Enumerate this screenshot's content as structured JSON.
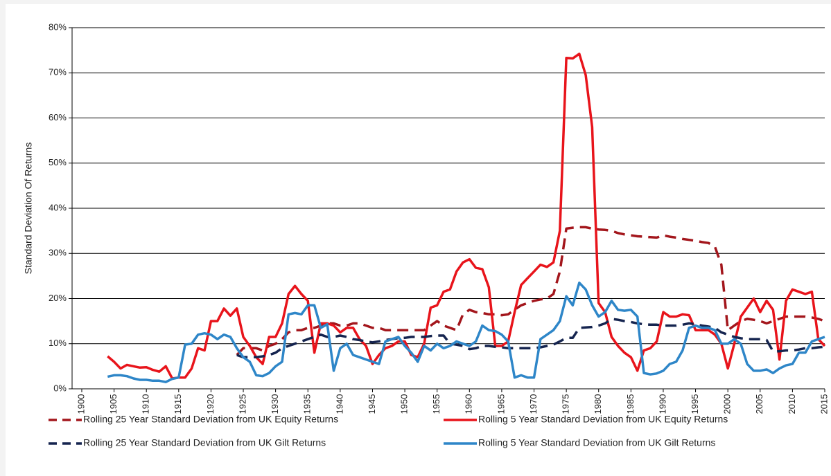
{
  "chart_data": {
    "type": "line",
    "y_label": "Standard Deviation Of Returns",
    "x": [
      1904,
      1905,
      1906,
      1907,
      1908,
      1909,
      1910,
      1911,
      1912,
      1913,
      1914,
      1915,
      1916,
      1917,
      1918,
      1919,
      1920,
      1921,
      1922,
      1923,
      1924,
      1925,
      1926,
      1927,
      1928,
      1929,
      1930,
      1931,
      1932,
      1933,
      1934,
      1935,
      1936,
      1937,
      1938,
      1939,
      1940,
      1941,
      1942,
      1943,
      1944,
      1945,
      1946,
      1947,
      1948,
      1949,
      1950,
      1951,
      1952,
      1953,
      1954,
      1955,
      1956,
      1957,
      1958,
      1959,
      1960,
      1961,
      1962,
      1963,
      1964,
      1965,
      1966,
      1967,
      1968,
      1969,
      1970,
      1971,
      1972,
      1973,
      1974,
      1975,
      1976,
      1977,
      1978,
      1979,
      1980,
      1981,
      1982,
      1983,
      1984,
      1985,
      1986,
      1987,
      1988,
      1989,
      1990,
      1991,
      1992,
      1993,
      1994,
      1995,
      1996,
      1997,
      1998,
      1999,
      2000,
      2001,
      2002,
      2003,
      2004,
      2005,
      2006,
      2007,
      2008,
      2009,
      2010,
      2011,
      2012,
      2013,
      2014,
      2015
    ],
    "series": [
      {
        "name": "Rolling 25 Year Standard Deviation from UK Equity Returns",
        "color": "#a3161c",
        "dashed": true,
        "values": [
          null,
          null,
          null,
          null,
          null,
          null,
          null,
          null,
          null,
          null,
          null,
          null,
          null,
          null,
          null,
          null,
          null,
          null,
          null,
          null,
          7.5,
          9,
          9,
          9,
          8.5,
          9.5,
          10,
          11,
          12.5,
          13,
          13,
          13.5,
          13.5,
          14,
          14.5,
          14.5,
          14,
          14,
          14.5,
          14.5,
          14,
          13.5,
          13.5,
          13,
          13,
          13,
          13,
          13,
          13,
          13,
          14,
          15,
          14,
          13.5,
          13,
          16.5,
          17.5,
          17,
          16.8,
          16.5,
          16.5,
          16.3,
          16.5,
          17.5,
          18.5,
          19,
          19.5,
          19.8,
          20,
          21,
          26,
          35.5,
          35.7,
          35.8,
          35.8,
          35.5,
          35.3,
          35.2,
          35,
          34.5,
          34.2,
          34,
          33.8,
          33.7,
          33.6,
          33.5,
          34,
          33.7,
          33.5,
          33.2,
          33,
          32.8,
          32.5,
          32.3,
          31.5,
          27.5,
          13,
          14,
          15,
          15.5,
          15.3,
          15,
          14.5,
          15,
          15.5,
          16,
          16,
          16,
          16,
          15.8,
          15.5,
          15
        ]
      },
      {
        "name": "Rolling 5 Year Standard Deviation from UK Equity Returns",
        "color": "#e8141b",
        "dashed": false,
        "values": [
          7.2,
          6,
          4.5,
          5.3,
          5,
          4.7,
          4.8,
          4.2,
          3.8,
          5,
          2.3,
          2.5,
          2.5,
          4.5,
          9,
          8.5,
          15,
          15,
          17.8,
          16.2,
          17.8,
          11.5,
          9.5,
          7,
          5.5,
          11.5,
          11.5,
          14.5,
          21,
          22.8,
          21,
          19.5,
          8,
          14.5,
          14.5,
          14,
          12.5,
          13.5,
          13.5,
          11,
          9.5,
          5.5,
          7.5,
          9,
          9.5,
          10.5,
          10.5,
          7.5,
          7,
          10,
          18,
          18.5,
          21.5,
          22,
          26,
          28,
          28.7,
          26.8,
          26.5,
          22.5,
          9.5,
          9.5,
          10.5,
          17,
          23,
          24.5,
          26,
          27.5,
          27,
          28,
          35,
          73.3,
          73.2,
          74.2,
          69.5,
          58,
          19,
          17,
          11.5,
          9.5,
          8,
          7,
          4,
          8.5,
          9,
          10.5,
          17,
          16,
          16,
          16.5,
          16.3,
          13,
          13,
          13,
          12,
          10,
          4.5,
          10,
          16,
          18,
          20,
          17,
          19.5,
          17.5,
          6.5,
          19.5,
          22,
          21.5,
          21,
          21.5,
          11,
          9.5
        ]
      },
      {
        "name": "Rolling 25 Year Standard Deviation from UK Gilt Returns",
        "color": "#15244f",
        "dashed": true,
        "values": [
          null,
          null,
          null,
          null,
          null,
          null,
          null,
          null,
          null,
          null,
          null,
          null,
          null,
          null,
          null,
          null,
          null,
          null,
          null,
          null,
          7.5,
          7,
          7,
          7,
          7.2,
          7.5,
          8,
          9,
          9.5,
          10,
          10.5,
          11,
          11.5,
          12,
          11.5,
          11.5,
          11.8,
          11.5,
          11,
          10.8,
          10.5,
          10.3,
          10.5,
          10.8,
          11,
          11.2,
          11.3,
          11.5,
          11.5,
          11.5,
          11.7,
          11.8,
          11.8,
          10,
          9.8,
          9.5,
          8.8,
          9,
          9.5,
          9.5,
          9.3,
          9.2,
          9,
          9,
          9,
          9,
          9,
          9.2,
          9.5,
          9.8,
          10.5,
          11.3,
          11.3,
          13.5,
          13.6,
          13.7,
          14,
          14.5,
          15.5,
          15.3,
          15,
          14.8,
          14.5,
          14.3,
          14.2,
          14.2,
          14,
          14,
          14,
          14.2,
          14.5,
          14.3,
          14,
          13.8,
          13.5,
          12.5,
          12,
          11.5,
          11.2,
          11,
          11,
          11,
          10.8,
          8.3,
          8.3,
          8.5,
          8.5,
          8.7,
          9,
          9,
          9.2,
          9.3
        ]
      },
      {
        "name": "Rolling 5 Year Standard Deviation from UK Gilt Returns",
        "color": "#2e86c8",
        "dashed": false,
        "values": [
          2.7,
          3,
          3,
          2.8,
          2.3,
          2,
          2,
          1.8,
          1.8,
          1.5,
          2.2,
          2.5,
          9.8,
          10,
          12,
          12.3,
          12,
          11,
          12,
          11.5,
          9,
          7,
          6,
          3,
          2.8,
          3.5,
          5,
          6,
          16.5,
          16.8,
          16.5,
          18.5,
          18.5,
          13.5,
          14.3,
          4,
          9,
          10,
          7.5,
          7,
          6.5,
          6,
          5.5,
          10.5,
          11,
          11.5,
          9.5,
          8,
          6,
          9.5,
          8.5,
          10,
          9,
          9.5,
          10.5,
          10,
          9.5,
          10.5,
          14,
          13,
          12.8,
          12,
          10.5,
          2.5,
          3,
          2.5,
          2.5,
          11,
          12,
          13,
          15,
          20.5,
          18.5,
          23.5,
          22,
          18.5,
          16,
          17,
          19.5,
          17.5,
          17.3,
          17.5,
          16,
          3.5,
          3.2,
          3.4,
          4,
          5.5,
          6,
          8.5,
          13.5,
          14,
          13.5,
          13.5,
          13,
          10,
          10,
          11,
          10,
          5.5,
          4,
          4,
          4.3,
          3.5,
          4.5,
          5.2,
          5.5,
          8,
          8,
          10.5,
          11,
          11.5
        ]
      }
    ],
    "xlim": [
      1898.5,
      2015
    ],
    "xticks": [
      1900,
      1905,
      1910,
      1915,
      1920,
      1925,
      1930,
      1935,
      1940,
      1945,
      1950,
      1955,
      1960,
      1965,
      1970,
      1975,
      1980,
      1985,
      1990,
      1995,
      2000,
      2005,
      2010,
      2015
    ],
    "ylim": [
      0,
      80
    ],
    "yticks": [
      {
        "value": 0,
        "label": "0%"
      },
      {
        "value": 10,
        "label": "10%"
      },
      {
        "value": 20,
        "label": "20%"
      },
      {
        "value": 30,
        "label": "30%"
      },
      {
        "value": 40,
        "label": "40%"
      },
      {
        "value": 50,
        "label": "50%"
      },
      {
        "value": 60,
        "label": "60%"
      },
      {
        "value": 70,
        "label": "70%"
      },
      {
        "value": 80,
        "label": "80%"
      }
    ],
    "grid": true
  }
}
